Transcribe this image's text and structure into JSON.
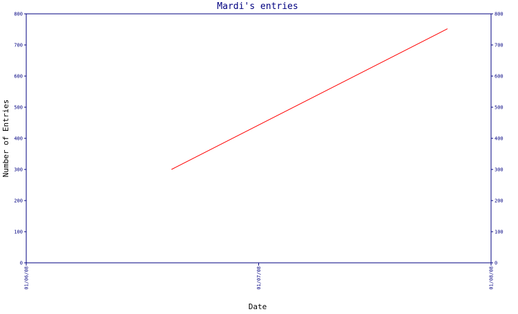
{
  "chart_data": {
    "type": "line",
    "title": "Mardi's entries",
    "xlabel": "Date",
    "ylabel": "Number of Entries",
    "x_ticks": [
      "01/06/08",
      "01/07/08",
      "01/08/08"
    ],
    "y_ticks": [
      "0",
      "100",
      "200",
      "300",
      "400",
      "500",
      "600",
      "700",
      "800"
    ],
    "ylim": [
      0,
      800
    ],
    "xlim": [
      "2008-01-06",
      "2008-01-08"
    ],
    "grid": false,
    "legend": "none",
    "series": [
      {
        "color": "#ff0000",
        "points": [
          {
            "x": "2008-01-06 15:00",
            "y": 300
          },
          {
            "x": "2008-01-07 19:30",
            "y": 752
          }
        ]
      }
    ],
    "colors": {
      "axis": "#000080",
      "title": "#000080",
      "labels": "#000000",
      "background": "#ffffff"
    }
  }
}
